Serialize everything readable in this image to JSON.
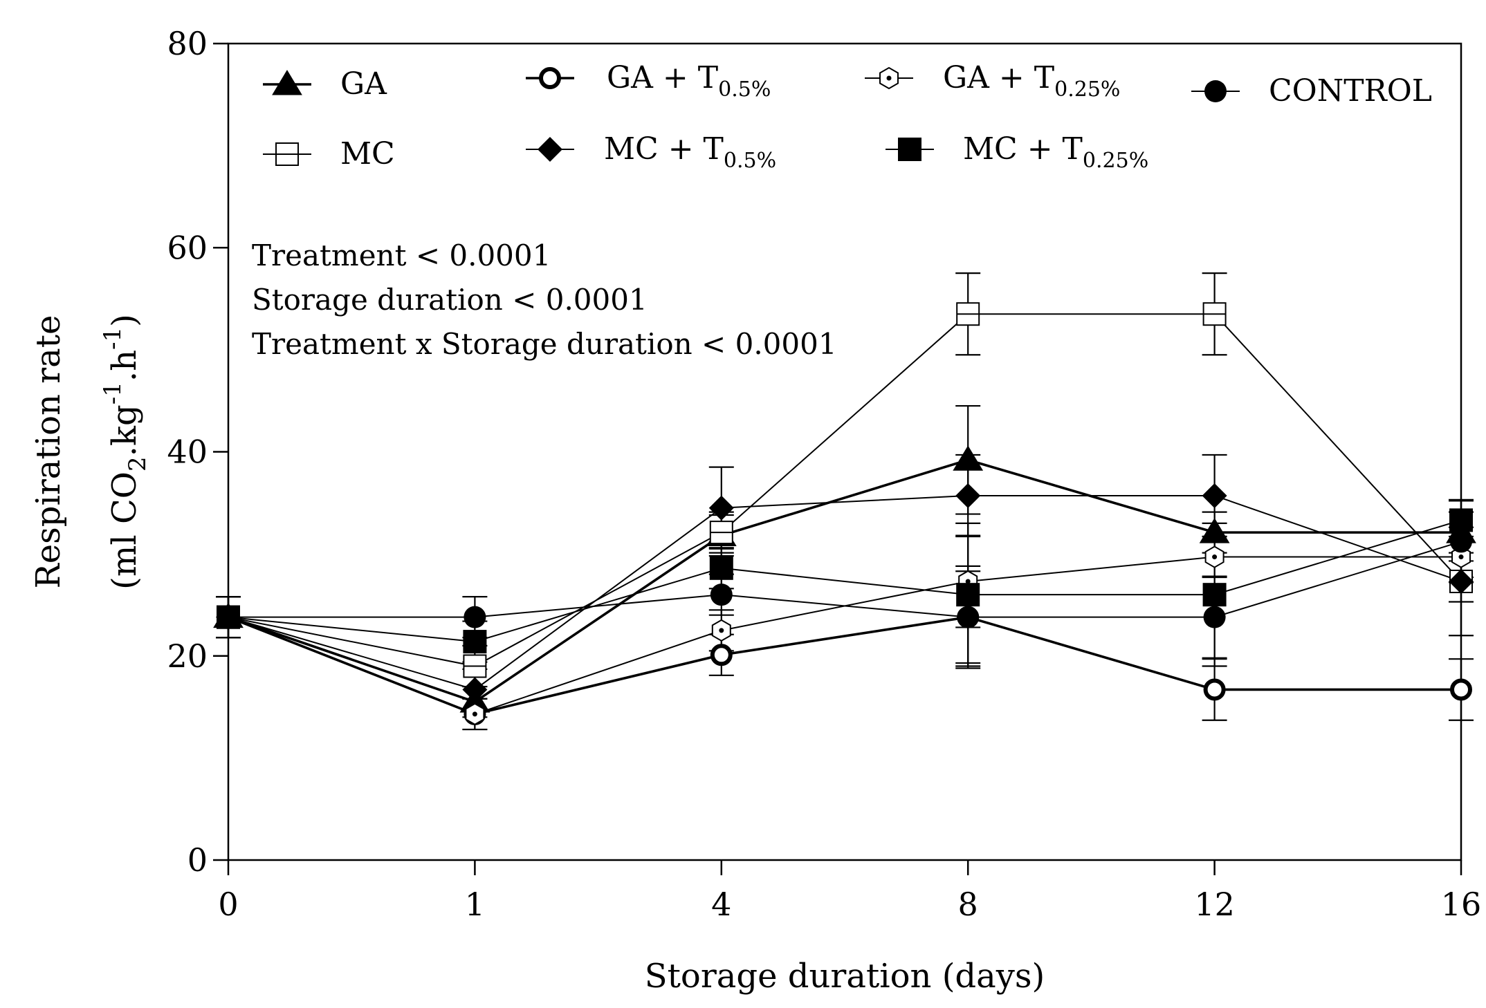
{
  "chart_data": {
    "type": "line",
    "xlabel": "Storage duration (days)",
    "ylabel_line1": "Respiration rate",
    "ylabel_line2": {
      "pre": "(ml CO",
      "sub": "2",
      "mid": ".kg",
      "sup1": "-1",
      "mid2": ".h",
      "sup2": "-1",
      "post": ")"
    },
    "x_categories": [
      "0",
      "1",
      "4",
      "8",
      "12",
      "16"
    ],
    "ylim": [
      0,
      80
    ],
    "y_ticks": [
      "0",
      "20",
      "40",
      "60",
      "80"
    ],
    "grid": false,
    "legend_placement": "top",
    "annotations": [
      "Treatment < 0.0001",
      "Storage duration < 0.0001",
      "Treatment x Storage duration < 0.0001"
    ],
    "series": [
      {
        "name": "GA",
        "name_sub": "",
        "marker": "triangle-filled",
        "line_width": 3.6,
        "values": [
          23.8,
          15.5,
          31.8,
          39.2,
          32.1,
          32.1
        ],
        "errors": [
          2,
          1.5,
          2,
          5.3,
          2,
          2
        ]
      },
      {
        "name": "GA + T",
        "name_sub": "0.5%",
        "marker": "circle-open-thick",
        "line_width": 3.6,
        "values": [
          23.8,
          14.3,
          20.1,
          23.8,
          16.7,
          16.7
        ],
        "errors": [
          2,
          1.5,
          2,
          4.5,
          3,
          3
        ]
      },
      {
        "name": "GA + T",
        "name_sub": "0.25%",
        "marker": "hexagon-open-dot",
        "line_width": 2,
        "values": [
          23.8,
          14.3,
          22.5,
          27.3,
          29.7,
          29.7
        ],
        "errors": [
          2,
          1.5,
          2,
          4.5,
          2,
          2
        ]
      },
      {
        "name": "CONTROL",
        "name_sub": "",
        "marker": "circle-filled",
        "line_width": 2,
        "values": [
          23.8,
          23.8,
          26.0,
          23.8,
          23.8,
          31.2
        ],
        "errors": [
          2,
          2,
          2,
          5,
          4,
          4
        ]
      },
      {
        "name": "MC",
        "name_sub": "",
        "marker": "square-open",
        "line_width": 2,
        "values": [
          23.8,
          19.0,
          32.1,
          53.5,
          53.5,
          27.3
        ],
        "errors": [
          2,
          2,
          2,
          4,
          4,
          2
        ]
      },
      {
        "name": "MC + T",
        "name_sub": "0.5%",
        "marker": "diamond-filled",
        "line_width": 2,
        "values": [
          23.8,
          16.7,
          34.5,
          35.7,
          35.7,
          27.3
        ],
        "errors": [
          2,
          2,
          4,
          4,
          4,
          5.3
        ]
      },
      {
        "name": "MC + T",
        "name_sub": "0.25%",
        "marker": "square-filled",
        "line_width": 2,
        "values": [
          23.8,
          21.4,
          28.6,
          26.0,
          26.0,
          33.3
        ],
        "errors": [
          2,
          2,
          2,
          7,
          7,
          2
        ]
      }
    ]
  }
}
